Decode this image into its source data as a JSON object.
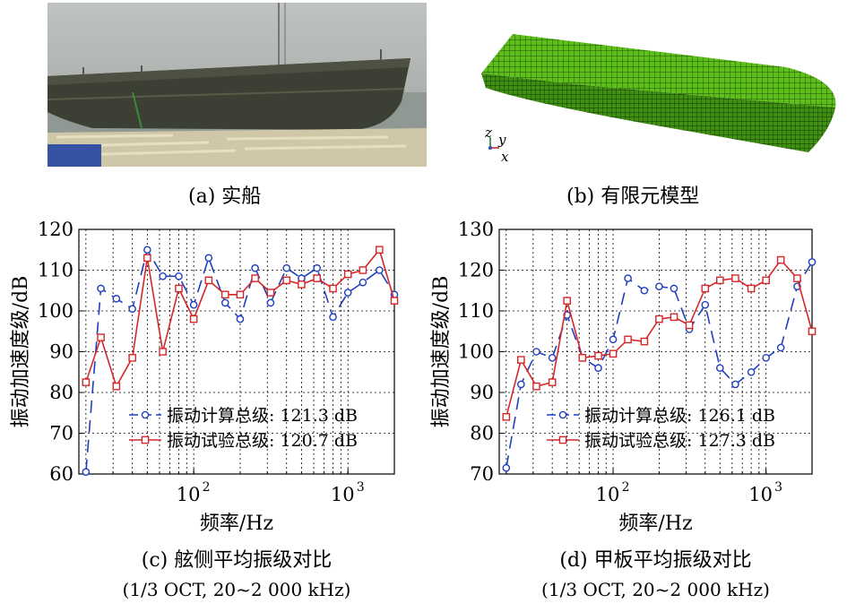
{
  "photos": {
    "a_caption": "(a) 实船",
    "b_caption": "(b) 有限元模型",
    "b_axis_z": "z",
    "b_axis_y": "y",
    "b_axis_x": "x"
  },
  "chart_data": [
    {
      "type": "line",
      "xscale": "log",
      "xlim": [
        18,
        2000
      ],
      "x_ticks": [
        100,
        1000
      ],
      "x_tick_labels": [
        "10",
        "10"
      ],
      "x_tick_exponents": [
        "2",
        "3"
      ],
      "ylim": [
        60,
        120
      ],
      "y_ticks": [
        60,
        70,
        80,
        90,
        100,
        110,
        120
      ],
      "grid": true,
      "xlabel": "频率/Hz",
      "ylabel": "振动加速度级/dB",
      "legend_position": "bottom-right",
      "caption": "(c) 舷侧平均振级对比",
      "subcaption": "(1/3 OCT, 20~2 000 kHz)",
      "x": [
        20,
        25,
        31.5,
        40,
        50,
        63,
        80,
        100,
        125,
        160,
        200,
        250,
        315,
        400,
        500,
        630,
        800,
        1000,
        1250,
        1600,
        2000
      ],
      "series": [
        {
          "name": "振动计算总级: 121.3 dB",
          "color": "#1f3fbf",
          "marker": "circle",
          "dash": "dashed",
          "values": [
            60.5,
            105.5,
            103,
            100.5,
            115,
            108.5,
            108.5,
            101.5,
            113,
            102,
            98,
            110.5,
            102,
            110.5,
            108,
            110.5,
            98.5,
            104.5,
            107,
            110,
            104
          ]
        },
        {
          "name": "振动试验总级: 120.7 dB",
          "color": "#d62728",
          "marker": "square",
          "dash": "solid",
          "values": [
            82.5,
            93.5,
            81.5,
            88.5,
            113,
            90,
            105.5,
            98,
            107.5,
            104,
            104,
            108,
            104.5,
            107.5,
            106.5,
            108,
            105.5,
            109,
            110,
            115,
            102.5
          ]
        }
      ]
    },
    {
      "type": "line",
      "xscale": "log",
      "xlim": [
        18,
        2000
      ],
      "x_ticks": [
        100,
        1000
      ],
      "x_tick_labels": [
        "10",
        "10"
      ],
      "x_tick_exponents": [
        "2",
        "3"
      ],
      "ylim": [
        70,
        130
      ],
      "y_ticks": [
        70,
        80,
        90,
        100,
        110,
        120,
        130
      ],
      "grid": true,
      "xlabel": "频率/Hz",
      "ylabel": "振动加速度级/dB",
      "legend_position": "bottom-right",
      "caption": "(d) 甲板平均振级对比",
      "subcaption": "(1/3 OCT, 20~2 000 kHz)",
      "x": [
        20,
        25,
        31.5,
        40,
        50,
        63,
        80,
        100,
        125,
        160,
        200,
        250,
        315,
        400,
        500,
        630,
        800,
        1000,
        1250,
        1600,
        2000
      ],
      "series": [
        {
          "name": "振动计算总级: 126.1 dB",
          "color": "#1f3fbf",
          "marker": "circle",
          "dash": "dashed",
          "values": [
            71.5,
            92,
            100,
            98.5,
            109,
            98.5,
            96,
            103,
            118,
            115,
            116,
            115.5,
            105.5,
            111.5,
            96,
            92,
            95,
            98.5,
            101,
            116,
            122
          ]
        },
        {
          "name": "振动试验总级: 127.3 dB",
          "color": "#d62728",
          "marker": "square",
          "dash": "solid",
          "values": [
            84,
            98,
            91.5,
            92.5,
            112.5,
            98.5,
            99,
            99.5,
            103,
            102.5,
            108,
            108.5,
            106.5,
            115.5,
            117.5,
            118,
            115.5,
            117.5,
            122.5,
            118,
            105
          ]
        }
      ]
    }
  ]
}
